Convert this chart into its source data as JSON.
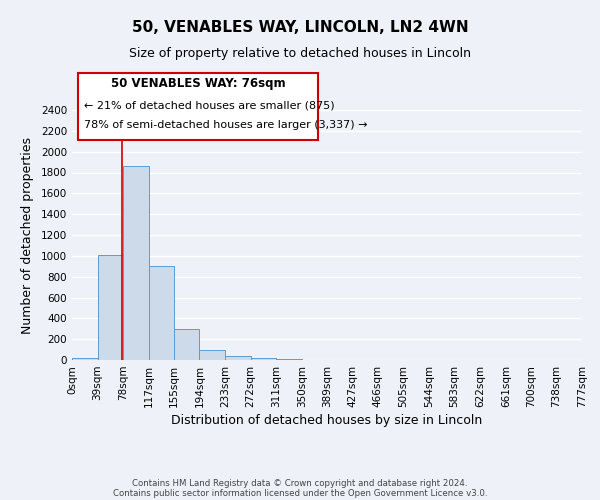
{
  "title": "50, VENABLES WAY, LINCOLN, LN2 4WN",
  "subtitle": "Size of property relative to detached houses in Lincoln",
  "xlabel": "Distribution of detached houses by size in Lincoln",
  "ylabel": "Number of detached properties",
  "bar_color": "#ccdaea",
  "bar_edge_color": "#5b9bd5",
  "background_color": "#eef2f8",
  "grid_color": "#ffffff",
  "annotation_box_color": "#ffffff",
  "annotation_box_edge": "#cc0000",
  "vline_color": "#cc0000",
  "vline_x": 76,
  "bin_edges": [
    0,
    39,
    78,
    117,
    155,
    194,
    233,
    272,
    311,
    350,
    389,
    427,
    466,
    505,
    544,
    583,
    622,
    661,
    700,
    738,
    777
  ],
  "bin_labels": [
    "0sqm",
    "39sqm",
    "78sqm",
    "117sqm",
    "155sqm",
    "194sqm",
    "233sqm",
    "272sqm",
    "311sqm",
    "350sqm",
    "389sqm",
    "427sqm",
    "466sqm",
    "505sqm",
    "544sqm",
    "583sqm",
    "622sqm",
    "661sqm",
    "700sqm",
    "738sqm",
    "777sqm"
  ],
  "bar_heights": [
    20,
    1010,
    1860,
    900,
    300,
    100,
    40,
    20,
    10,
    0,
    0,
    0,
    0,
    0,
    0,
    0,
    0,
    0,
    0,
    0
  ],
  "ylim": [
    0,
    2400
  ],
  "yticks": [
    0,
    200,
    400,
    600,
    800,
    1000,
    1200,
    1400,
    1600,
    1800,
    2000,
    2200,
    2400
  ],
  "annotation_title": "50 VENABLES WAY: 76sqm",
  "annotation_line1": "← 21% of detached houses are smaller (875)",
  "annotation_line2": "78% of semi-detached houses are larger (3,337) →",
  "footer_line1": "Contains HM Land Registry data © Crown copyright and database right 2024.",
  "footer_line2": "Contains public sector information licensed under the Open Government Licence v3.0."
}
